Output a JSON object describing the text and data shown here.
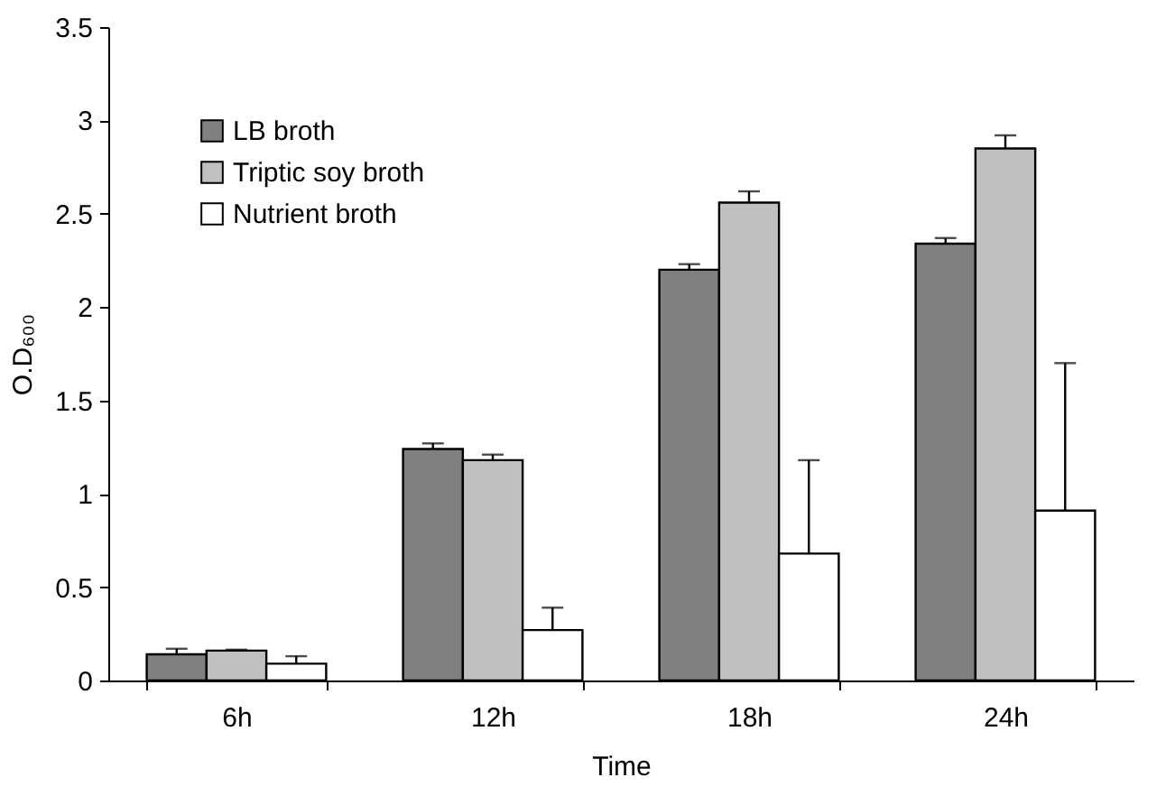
{
  "chart_data": {
    "type": "bar",
    "xlabel": "Time",
    "ylabel": "O.D₆₀₀",
    "categories": [
      "6h",
      "12h",
      "18h",
      "24h"
    ],
    "series": [
      {
        "name": "LB broth",
        "color": "#808080",
        "values": [
          0.14,
          1.24,
          2.2,
          2.34
        ],
        "errors": [
          [
            0.14,
            0.17
          ],
          [
            1.24,
            1.27
          ],
          [
            2.2,
            2.23
          ],
          [
            2.34,
            2.37
          ]
        ]
      },
      {
        "name": "Triptic soy broth",
        "color": "#c0c0c0",
        "values": [
          0.16,
          1.18,
          2.56,
          2.85
        ],
        "errors": [
          [
            0.16,
            0.165
          ],
          [
            1.18,
            1.21
          ],
          [
            2.56,
            2.62
          ],
          [
            2.85,
            2.92
          ]
        ]
      },
      {
        "name": "Nutrient broth",
        "color": "#ffffff",
        "values": [
          0.09,
          0.27,
          0.68,
          0.91
        ],
        "errors": [
          [
            0.09,
            0.13
          ],
          [
            0.27,
            0.39
          ],
          [
            0.68,
            1.18
          ],
          [
            0.91,
            1.7
          ]
        ]
      }
    ],
    "ylim": [
      0,
      3.5
    ],
    "yticks": [
      0,
      0.5,
      1,
      1.5,
      2,
      2.5,
      3,
      3.5
    ],
    "grid": false,
    "legend": "top left"
  }
}
